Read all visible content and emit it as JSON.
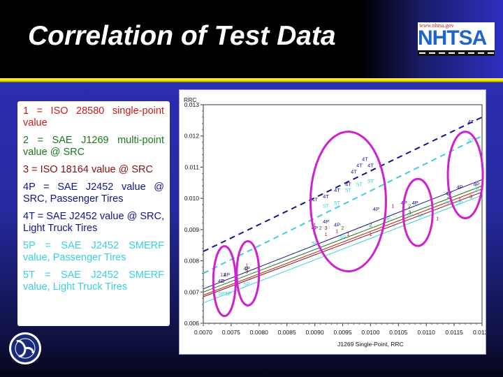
{
  "slide": {
    "title": "Correlation of Test Data",
    "logo": {
      "url_text": "www.nhtsa.gov",
      "name": "NHTSA"
    },
    "seal": "dot-seal-icon"
  },
  "legend": {
    "items": [
      {
        "text": "1 =  ISO 28580 single-point value",
        "color": "#cc1a1a"
      },
      {
        "text": "2 = SAE J1269 multi-point value @ SRC",
        "color": "#1a7a1a"
      },
      {
        "text": "3  =  ISO  18164  value  @ SRC",
        "color": "#8a1010"
      },
      {
        "text": "4P  =  SAE  J2452  value  @ SRC, Passenger Tires",
        "color": "#14148c"
      },
      {
        "text": "4T  =  SAE  J2452  value  @ SRC, Light Truck Tires",
        "color": "#14148c"
      },
      {
        "text": "5P  =  SAE  J2452  SMERF value, Passenger Tires",
        "color": "#3ad0e0"
      },
      {
        "text": "5T = SAE J2452 SMERF value, Light Truck Tires",
        "color": "#3ad0e0"
      }
    ]
  },
  "chart_data": {
    "type": "scatter",
    "title": "",
    "xlabel": "J1269 Single-Point, RRC",
    "ylabel": "RRC",
    "xlim": [
      0.007,
      0.012
    ],
    "ylim": [
      0.006,
      0.013
    ],
    "x_ticks": [
      "0.0070",
      "0.0075",
      "0.0080",
      "0.0085",
      "0.0090",
      "0.0095",
      "0.0100",
      "0.0105",
      "0.0110",
      "0.0115",
      "0.0120"
    ],
    "y_ticks": [
      "0.006",
      "0.007",
      "0.008",
      "0.009",
      "0.010",
      "0.011",
      "0.012",
      "0.013"
    ],
    "grid": false,
    "series": [
      {
        "name": "1",
        "color": "#cc1a1a",
        "line": "solid",
        "fit": [
          [
            0.007,
            0.0069
          ],
          [
            0.012,
            0.0103
          ]
        ],
        "points": [
          [
            0.00733,
            0.0075
          ],
          [
            0.00778,
            0.0078
          ],
          [
            0.009,
            0.0091
          ],
          [
            0.0092,
            0.0088
          ],
          [
            0.0094,
            0.0089
          ],
          [
            0.0096,
            0.0088
          ],
          [
            0.01,
            0.0088
          ],
          [
            0.0104,
            0.0097
          ],
          [
            0.0106,
            0.0093
          ],
          [
            0.0112,
            0.0093
          ],
          [
            0.0116,
            0.0099
          ]
        ]
      },
      {
        "name": "2",
        "color": "#1a7a1a",
        "line": "solid",
        "fit": [
          [
            0.007,
            0.007
          ],
          [
            0.012,
            0.0104
          ]
        ],
        "points": [
          [
            0.00738,
            0.0075
          ],
          [
            0.00778,
            0.0077
          ],
          [
            0.0091,
            0.009
          ],
          [
            0.0095,
            0.009
          ],
          [
            0.01,
            0.0091
          ],
          [
            0.0107,
            0.0097
          ],
          [
            0.0114,
            0.01
          ]
        ]
      },
      {
        "name": "3",
        "color": "#8a1010",
        "line": "solid",
        "fit": [
          [
            0.007,
            0.00685
          ],
          [
            0.012,
            0.0102
          ]
        ],
        "points": [
          [
            0.00735,
            0.0073
          ],
          [
            0.00778,
            0.0076
          ],
          [
            0.0092,
            0.009
          ],
          [
            0.0107,
            0.0095
          ],
          [
            0.0118,
            0.01
          ]
        ]
      },
      {
        "name": "4P",
        "color": "#14148c",
        "line": "solid",
        "fit": [
          [
            0.007,
            0.0071
          ],
          [
            0.012,
            0.0106
          ]
        ],
        "points": [
          [
            0.00732,
            0.0073
          ],
          [
            0.00742,
            0.0075
          ],
          [
            0.00778,
            0.0077
          ],
          [
            0.009,
            0.009
          ],
          [
            0.0092,
            0.0092
          ],
          [
            0.0094,
            0.0091
          ],
          [
            0.0101,
            0.0096
          ],
          [
            0.0106,
            0.0098
          ],
          [
            0.0108,
            0.0098
          ],
          [
            0.0114,
            0.0101
          ],
          [
            0.0116,
            0.0103
          ],
          [
            0.0119,
            0.0104
          ]
        ]
      },
      {
        "name": "4T",
        "color": "#14148c",
        "line": "dashed",
        "fit": [
          [
            0.007,
            0.0083
          ],
          [
            0.012,
            0.0126
          ]
        ],
        "points": [
          [
            0.009,
            0.0099
          ],
          [
            0.0092,
            0.01
          ],
          [
            0.0094,
            0.0102
          ],
          [
            0.0096,
            0.0104
          ],
          [
            0.0097,
            0.0108
          ],
          [
            0.0098,
            0.011
          ],
          [
            0.0099,
            0.0112
          ],
          [
            0.01,
            0.011
          ],
          [
            0.0118,
            0.0124
          ]
        ]
      },
      {
        "name": "5P",
        "color": "#3ad0e0",
        "line": "solid",
        "fit": [
          [
            0.007,
            0.00665
          ],
          [
            0.012,
            0.0101
          ]
        ],
        "points": [
          [
            0.00733,
            0.0069
          ],
          [
            0.00745,
            0.0069
          ],
          [
            0.00778,
            0.0072
          ],
          [
            0.009,
            0.0085
          ],
          [
            0.0095,
            0.0087
          ],
          [
            0.0103,
            0.0093
          ],
          [
            0.0107,
            0.0094
          ],
          [
            0.0109,
            0.0094
          ],
          [
            0.0114,
            0.0098
          ],
          [
            0.0116,
            0.0098
          ],
          [
            0.0119,
            0.0102
          ]
        ]
      },
      {
        "name": "5T",
        "color": "#3ad0e0",
        "line": "dashed",
        "fit": [
          [
            0.007,
            0.0076
          ],
          [
            0.012,
            0.012
          ]
        ],
        "points": [
          [
            0.0092,
            0.0097
          ],
          [
            0.0094,
            0.0098
          ],
          [
            0.0096,
            0.0102
          ],
          [
            0.0098,
            0.0104
          ],
          [
            0.01,
            0.0105
          ],
          [
            0.0118,
            0.0118
          ]
        ]
      }
    ],
    "annotations": [
      {
        "type": "ellipse",
        "color": "#d020d0",
        "cx": 0.00738,
        "cy": 0.00735,
        "note": "cluster 1"
      },
      {
        "type": "ellipse",
        "color": "#d020d0",
        "cx": 0.0078,
        "cy": 0.0076,
        "note": "cluster 2"
      },
      {
        "type": "ellipse",
        "color": "#d020d0",
        "cx": 0.0096,
        "cy": 0.0099,
        "note": "cluster 3"
      },
      {
        "type": "ellipse",
        "color": "#d020d0",
        "cx": 0.01085,
        "cy": 0.00955,
        "note": "cluster 4"
      },
      {
        "type": "ellipse",
        "color": "#d020d0",
        "cx": 0.0117,
        "cy": 0.01075,
        "note": "cluster 5"
      }
    ]
  }
}
